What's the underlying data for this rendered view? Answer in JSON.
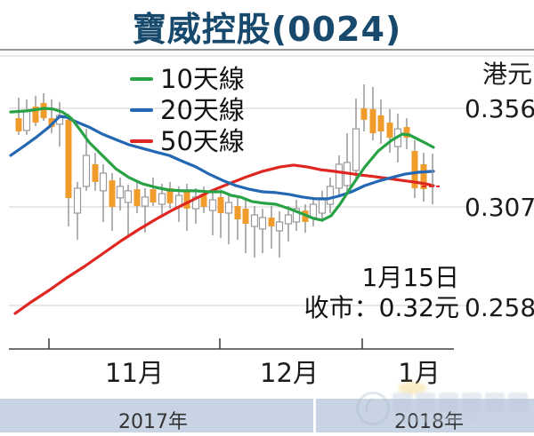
{
  "title": "寶威控股(0024)",
  "legend": [
    {
      "label": "10天線",
      "color": "#27a245"
    },
    {
      "label": "20天線",
      "color": "#2467b3"
    },
    {
      "label": "50天線",
      "color": "#e02620"
    }
  ],
  "y_axis": {
    "unit_label": "港元",
    "tick_labels": [
      "0.356",
      "0.307",
      "0.258"
    ]
  },
  "x_axis": {
    "months": [
      "11月",
      "12月",
      "1月"
    ],
    "years": [
      "2017年",
      "2018年"
    ]
  },
  "annotation": {
    "date_line": "1月15日",
    "close_line": "收市：0.32元"
  },
  "colors": {
    "title": "#17496d",
    "candle_down": "#f09c2d",
    "candle_up_fill": "#ffffff",
    "candle_border": "#999999",
    "wick": "#909090",
    "grid": "#d9d9d9",
    "axis": "#444444",
    "year_band": "#c8d4e4"
  },
  "watermark": {
    "visible": true
  },
  "chart_data": {
    "type": "candlestick+line",
    "title": "寶威控股(0024)",
    "ylabel": "港元",
    "y_ticks": [
      0.356,
      0.307,
      0.258
    ],
    "ylim": [
      0.236,
      0.382
    ],
    "x_months": [
      "11月",
      "12月",
      "1月"
    ],
    "close_annotation": {
      "date": "1月15日",
      "close": "0.32元"
    },
    "last_day": {
      "x": 486,
      "high": 0.3335,
      "low": 0.3083,
      "close": 0.3172
    },
    "candles": [
      [
        21,
        0.3613,
        0.3511,
        0.3445,
        0.3428
      ],
      [
        30,
        0.3604,
        0.345,
        0.3547,
        0.3428
      ],
      [
        40,
        0.3622,
        0.3569,
        0.3489,
        0.3472
      ],
      [
        49,
        0.3635,
        0.3587,
        0.3511,
        0.3498
      ],
      [
        58,
        0.3605,
        0.3511,
        0.3467,
        0.3436
      ],
      [
        67,
        0.3591,
        0.3481,
        0.3525,
        0.337
      ],
      [
        77,
        0.3534,
        0.3503,
        0.3114,
        0.2973
      ],
      [
        87,
        0.3194,
        0.3039,
        0.3163,
        0.2907
      ],
      [
        97,
        0.3458,
        0.3172,
        0.3326,
        0.315
      ],
      [
        107,
        0.3339,
        0.3282,
        0.3194,
        0.315
      ],
      [
        116,
        0.3282,
        0.315,
        0.3238,
        0.2995
      ],
      [
        126,
        0.3238,
        0.3202,
        0.307,
        0.2951
      ],
      [
        135,
        0.3216,
        0.3115,
        0.3172,
        0.3052
      ],
      [
        144,
        0.318,
        0.3092,
        0.315,
        0.2916
      ],
      [
        154,
        0.3194,
        0.3158,
        0.3074,
        0.3039
      ],
      [
        163,
        0.3163,
        0.3074,
        0.3119,
        0.2942
      ],
      [
        172,
        0.3216,
        0.3158,
        0.3092,
        0.3074
      ],
      [
        182,
        0.3185,
        0.3083,
        0.3136,
        0.3017
      ],
      [
        191,
        0.3194,
        0.3163,
        0.3088,
        0.3061
      ],
      [
        201,
        0.3172,
        0.307,
        0.3127,
        0.2995
      ],
      [
        210,
        0.3185,
        0.315,
        0.3061,
        0.2951
      ],
      [
        220,
        0.3163,
        0.3061,
        0.3119,
        0.2986
      ],
      [
        229,
        0.3172,
        0.3136,
        0.307,
        0.3039
      ],
      [
        239,
        0.315,
        0.3052,
        0.3105,
        0.2929
      ],
      [
        248,
        0.3158,
        0.3119,
        0.3039,
        0.2916
      ],
      [
        257,
        0.3136,
        0.3039,
        0.3092,
        0.2884
      ],
      [
        267,
        0.3119,
        0.3074,
        0.3008,
        0.2907
      ],
      [
        276,
        0.3105,
        0.3061,
        0.2986,
        0.284
      ],
      [
        286,
        0.3074,
        0.2973,
        0.303,
        0.2818
      ],
      [
        295,
        0.3061,
        0.296,
        0.3017,
        0.284
      ],
      [
        305,
        0.3074,
        0.3017,
        0.2973,
        0.2862
      ],
      [
        314,
        0.3048,
        0.2951,
        0.2995,
        0.2818
      ],
      [
        324,
        0.3074,
        0.2986,
        0.303,
        0.2898
      ],
      [
        333,
        0.3105,
        0.2995,
        0.3061,
        0.2951
      ],
      [
        343,
        0.3083,
        0.3052,
        0.2995,
        0.2942
      ],
      [
        352,
        0.3119,
        0.3017,
        0.3083,
        0.2973
      ],
      [
        362,
        0.315,
        0.3039,
        0.3105,
        0.2995
      ],
      [
        371,
        0.3216,
        0.3083,
        0.3172,
        0.3039
      ],
      [
        381,
        0.3326,
        0.3163,
        0.3282,
        0.3127
      ],
      [
        390,
        0.3436,
        0.3176,
        0.3291,
        0.3136
      ],
      [
        400,
        0.3609,
        0.3251,
        0.3458,
        0.3198
      ],
      [
        409,
        0.3679,
        0.356,
        0.3503,
        0.3445
      ],
      [
        419,
        0.3666,
        0.3556,
        0.3436,
        0.3401
      ],
      [
        428,
        0.3604,
        0.3525,
        0.3445,
        0.3383
      ],
      [
        438,
        0.3556,
        0.3489,
        0.3414,
        0.3339
      ],
      [
        447,
        0.3534,
        0.337,
        0.3458,
        0.3291
      ],
      [
        457,
        0.3511,
        0.3467,
        0.3414,
        0.3357
      ],
      [
        466,
        0.3401,
        0.3348,
        0.3163,
        0.3114
      ],
      [
        476,
        0.3339,
        0.3282,
        0.3158,
        0.3096
      ]
    ],
    "series": [
      {
        "name": "10天線",
        "color": "#27a245",
        "points": [
          [
            12,
            0.3542
          ],
          [
            30,
            0.3547
          ],
          [
            50,
            0.356
          ],
          [
            60,
            0.3556
          ],
          [
            70,
            0.3542
          ],
          [
            80,
            0.3511
          ],
          [
            90,
            0.3453
          ],
          [
            100,
            0.3392
          ],
          [
            115,
            0.3326
          ],
          [
            130,
            0.326
          ],
          [
            145,
            0.3216
          ],
          [
            160,
            0.3185
          ],
          [
            175,
            0.3167
          ],
          [
            190,
            0.3154
          ],
          [
            205,
            0.315
          ],
          [
            220,
            0.315
          ],
          [
            235,
            0.3145
          ],
          [
            250,
            0.3145
          ],
          [
            260,
            0.3127
          ],
          [
            270,
            0.3119
          ],
          [
            283,
            0.3097
          ],
          [
            297,
            0.3088
          ],
          [
            310,
            0.3083
          ],
          [
            325,
            0.3061
          ],
          [
            340,
            0.3035
          ],
          [
            352,
            0.3013
          ],
          [
            362,
            0.3004
          ],
          [
            372,
            0.3026
          ],
          [
            382,
            0.3083
          ],
          [
            395,
            0.3172
          ],
          [
            410,
            0.3269
          ],
          [
            425,
            0.3348
          ],
          [
            440,
            0.3401
          ],
          [
            452,
            0.3432
          ],
          [
            460,
            0.3428
          ],
          [
            470,
            0.3405
          ],
          [
            480,
            0.3383
          ],
          [
            487,
            0.3366
          ]
        ]
      },
      {
        "name": "20天線",
        "color": "#2467b3",
        "points": [
          [
            12,
            0.3326
          ],
          [
            25,
            0.3366
          ],
          [
            40,
            0.3414
          ],
          [
            55,
            0.3467
          ],
          [
            67,
            0.352
          ],
          [
            75,
            0.3516
          ],
          [
            85,
            0.3494
          ],
          [
            100,
            0.3467
          ],
          [
            115,
            0.3432
          ],
          [
            130,
            0.3405
          ],
          [
            145,
            0.3379
          ],
          [
            160,
            0.3361
          ],
          [
            175,
            0.3343
          ],
          [
            190,
            0.3326
          ],
          [
            205,
            0.3297
          ],
          [
            220,
            0.3269
          ],
          [
            235,
            0.3233
          ],
          [
            250,
            0.3202
          ],
          [
            265,
            0.3176
          ],
          [
            280,
            0.3158
          ],
          [
            295,
            0.3145
          ],
          [
            310,
            0.3141
          ],
          [
            325,
            0.3132
          ],
          [
            340,
            0.3119
          ],
          [
            355,
            0.311
          ],
          [
            368,
            0.311
          ],
          [
            380,
            0.3123
          ],
          [
            395,
            0.3145
          ],
          [
            410,
            0.3176
          ],
          [
            425,
            0.3198
          ],
          [
            440,
            0.3216
          ],
          [
            455,
            0.3233
          ],
          [
            470,
            0.3242
          ],
          [
            487,
            0.3247
          ]
        ]
      },
      {
        "name": "50天線",
        "color": "#e02620",
        "points": [
          [
            17,
            0.254
          ],
          [
            35,
            0.2597
          ],
          [
            55,
            0.2655
          ],
          [
            75,
            0.2717
          ],
          [
            95,
            0.2774
          ],
          [
            115,
            0.2836
          ],
          [
            135,
            0.2898
          ],
          [
            155,
            0.2955
          ],
          [
            175,
            0.3008
          ],
          [
            195,
            0.3057
          ],
          [
            215,
            0.3101
          ],
          [
            235,
            0.3145
          ],
          [
            255,
            0.3181
          ],
          [
            275,
            0.3216
          ],
          [
            295,
            0.3247
          ],
          [
            315,
            0.3269
          ],
          [
            330,
            0.3278
          ],
          [
            345,
            0.3269
          ],
          [
            360,
            0.3255
          ],
          [
            375,
            0.3247
          ],
          [
            390,
            0.3238
          ],
          [
            405,
            0.3229
          ],
          [
            420,
            0.3221
          ],
          [
            435,
            0.3212
          ],
          [
            450,
            0.3203
          ],
          [
            465,
            0.3194
          ],
          [
            478,
            0.3185
          ],
          [
            487,
            0.3176
          ]
        ]
      }
    ]
  }
}
